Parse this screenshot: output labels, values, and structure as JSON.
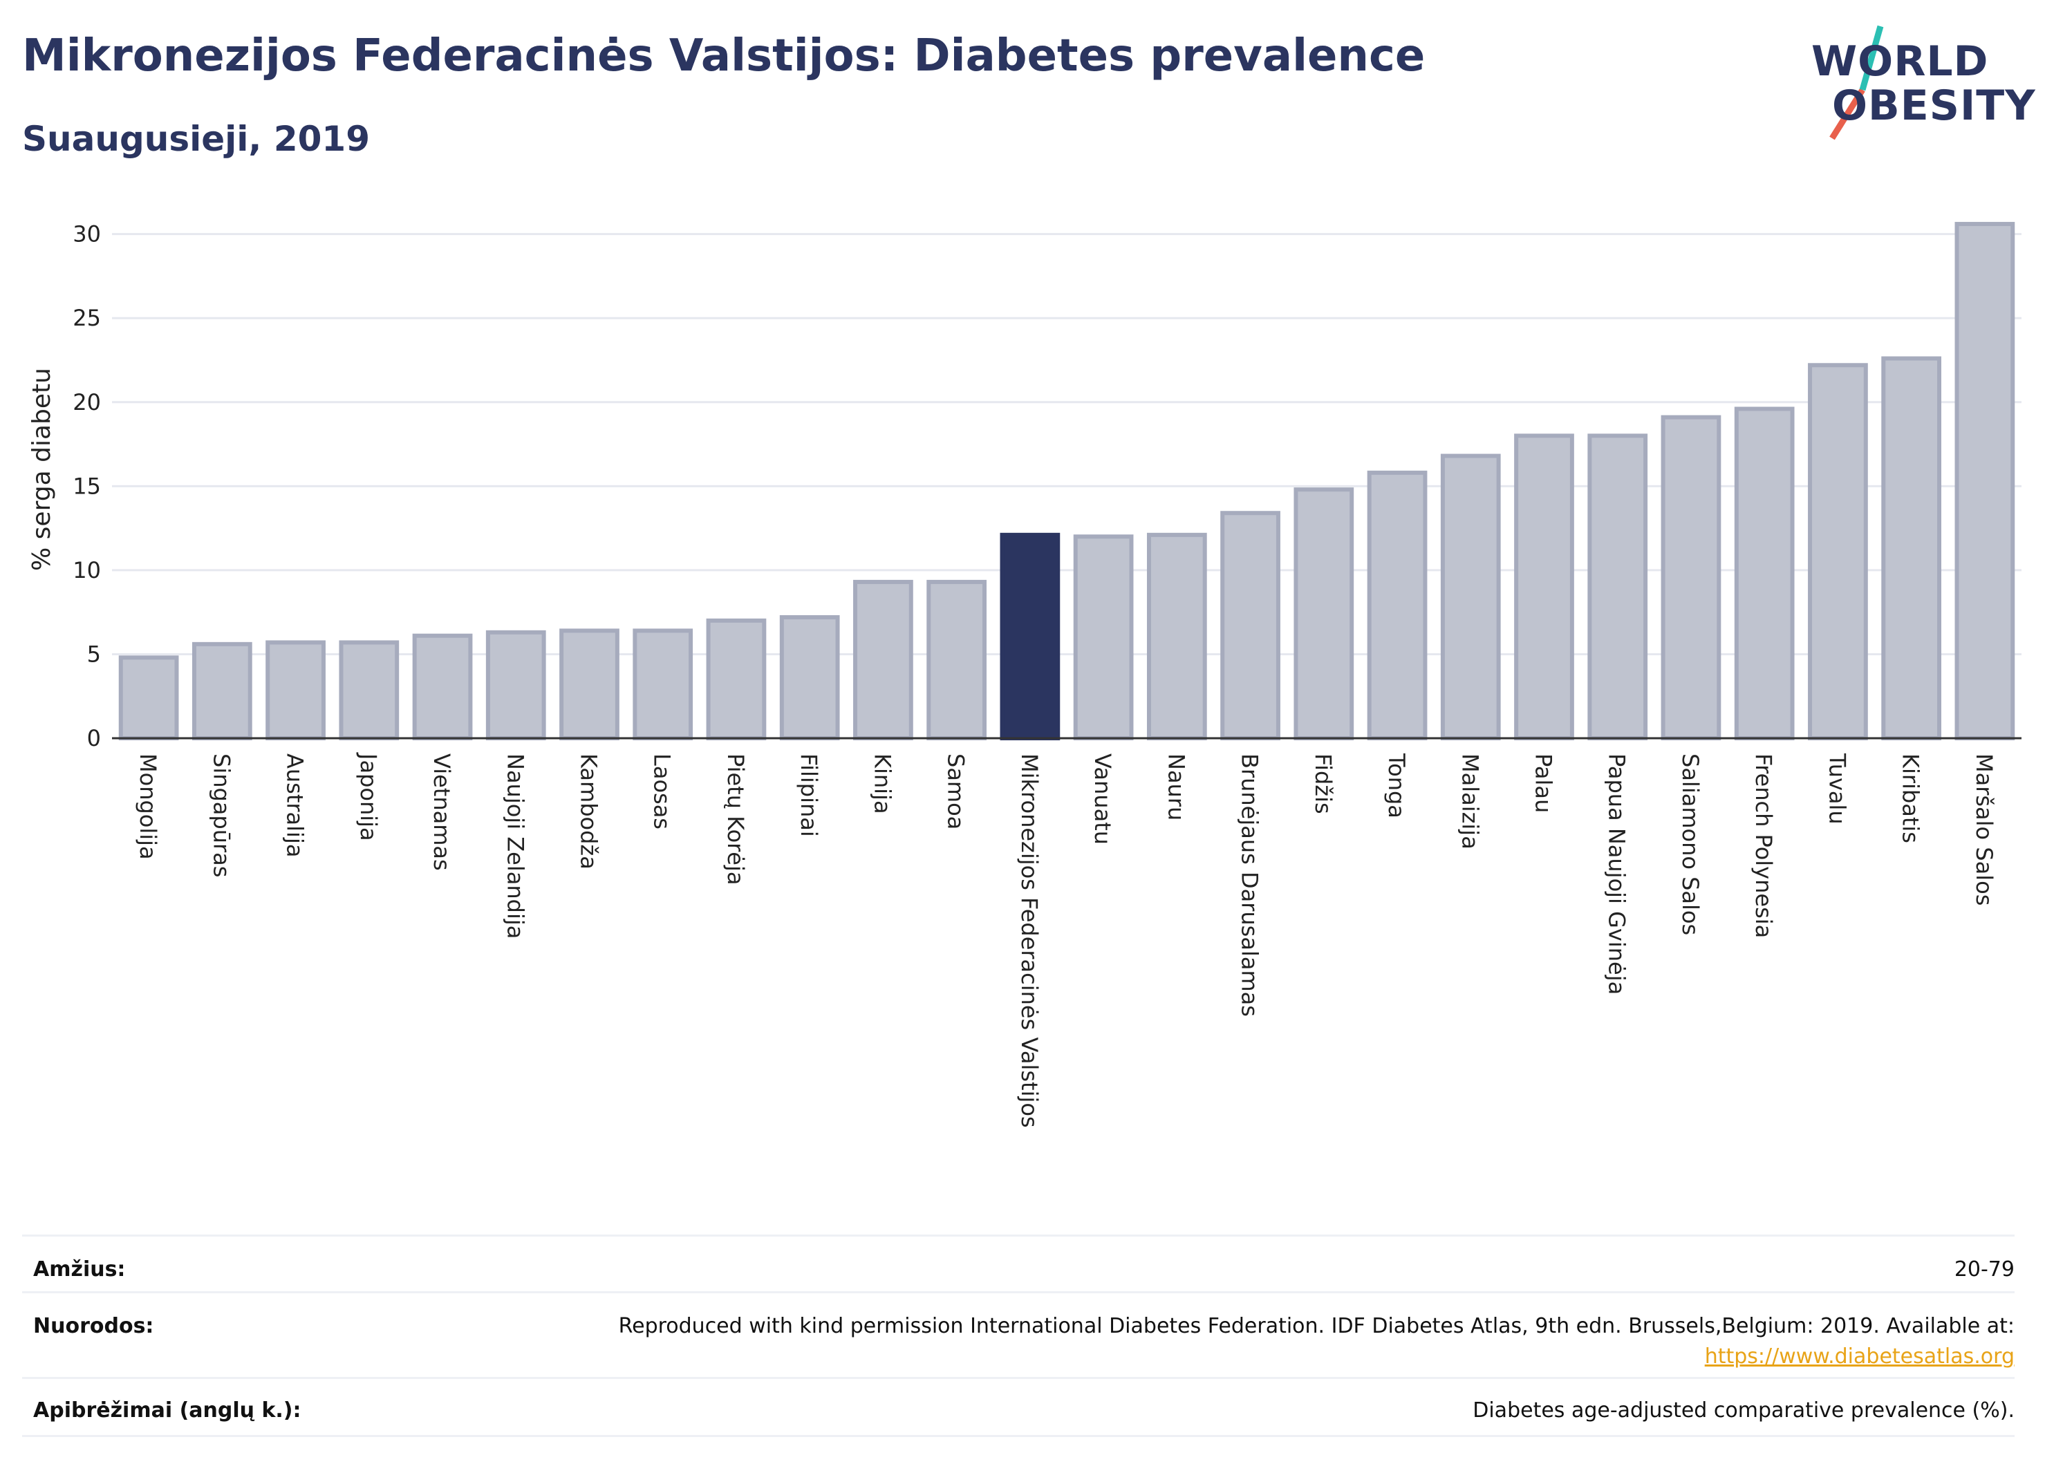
{
  "header": {
    "title": "Mikronezijos Federacinės Valstijos: Diabetes prevalence",
    "subtitle": "Suaugusieji, 2019"
  },
  "logo": {
    "line1": "WORLD",
    "line2": "OBESITY",
    "accent1": "#2bbfb3",
    "accent2": "#e8604c"
  },
  "colors": {
    "bar": "#bfc3cf",
    "bar_stroke": "#a6abbd",
    "highlight": "#2b3560",
    "grid": "#e6e8ef",
    "axis": "#333333"
  },
  "chart_data": {
    "type": "bar",
    "ylabel": "% serga diabetu",
    "xlabel": "",
    "ylim": [
      0,
      32
    ],
    "yticks": [
      0,
      5,
      10,
      15,
      20,
      25,
      30
    ],
    "grid": true,
    "highlight": "Mikronezijos Federacinės Valstijos",
    "categories": [
      "Mongolija",
      "Singapūras",
      "Australija",
      "Japonija",
      "Vietnamas",
      "Naujoji Zelandija",
      "Kambodža",
      "Laosas",
      "Pietų Korėja",
      "Filipinai",
      "Kinija",
      "Samoa",
      "Mikronezijos Federacinės Valstijos",
      "Vanuatu",
      "Nauru",
      "Brunėjaus Darusalamas",
      "Fidžis",
      "Tonga",
      "Malaizija",
      "Palau",
      "Papua Naujoji Gvinėja",
      "Saliamono Salos",
      "French Polynesia",
      "Tuvalu",
      "Kiribatis",
      "Maršalo Salos"
    ],
    "values": [
      4.8,
      5.6,
      5.7,
      5.7,
      6.1,
      6.3,
      6.4,
      6.4,
      7.0,
      7.2,
      9.3,
      9.3,
      12.1,
      12.0,
      12.1,
      13.4,
      14.8,
      15.8,
      16.8,
      18.0,
      18.0,
      19.1,
      19.6,
      22.2,
      22.6,
      30.6
    ]
  },
  "footer": {
    "age_label": "Amžius:",
    "age_value": "20-79",
    "refs_label": "Nuorodos:",
    "refs_text": "Reproduced with kind permission International Diabetes Federation. IDF Diabetes Atlas, 9th edn. Brussels,Belgium: 2019. Available at:",
    "refs_link": "https://www.diabetesatlas.org",
    "defs_label": "Apibrėžimai (anglų k.):",
    "defs_value": "Diabetes age-adjusted comparative prevalence (%)."
  }
}
